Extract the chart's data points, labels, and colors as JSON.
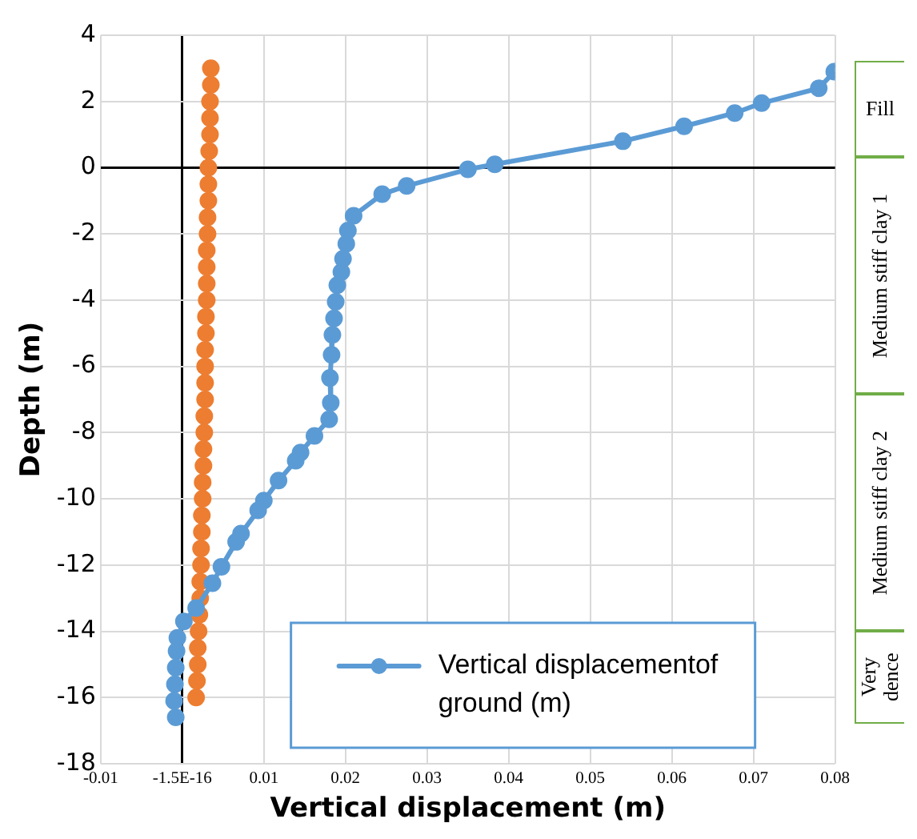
{
  "chart_data": {
    "type": "line",
    "xlabel": "Vertical displacement (m)",
    "ylabel": "Depth (m)",
    "xlim": [
      -0.01,
      0.08
    ],
    "xticks": [
      {
        "value": -0.01,
        "label": "-0.01"
      },
      {
        "value": 0,
        "label": "-1.5E-16"
      },
      0.01,
      0.02,
      0.03,
      0.04,
      0.05,
      0.06,
      0.07,
      0.08
    ],
    "ylim": [
      -18,
      4
    ],
    "yticks": [
      4,
      2,
      0,
      -2,
      -4,
      -6,
      -8,
      -10,
      -12,
      -14,
      -16,
      -18
    ],
    "grid": true,
    "legend": "bottom right",
    "marker": "circle",
    "line_style": "solid",
    "annotations": [
      "Fill",
      "Medium stiff clay 1",
      "Medium stiff clay 2",
      "Very dence"
    ],
    "series": [
      {
        "name": "Vertical displacementof ground (m)",
        "color": "#5b9bd5",
        "x": [
          0.0799,
          0.078,
          0.071,
          0.0677,
          0.0615,
          0.054,
          0.0383,
          0.035,
          0.0275,
          0.0245,
          0.021,
          0.0203,
          0.0201,
          0.0197,
          0.0195,
          0.019,
          0.0188,
          0.0186,
          0.0184,
          0.0183,
          0.0181,
          0.0182,
          0.018,
          0.0162,
          0.0145,
          0.0139,
          0.0118,
          0.01,
          0.0093,
          0.0072,
          0.0066,
          0.0048,
          0.0037,
          0.0017,
          0.0002,
          -0.0006,
          -0.0007,
          -0.0008,
          -0.0009,
          -0.001,
          -0.0008
        ],
        "values": [
          2.9,
          2.4,
          1.95,
          1.65,
          1.25,
          0.8,
          0.1,
          -0.05,
          -0.55,
          -0.8,
          -1.45,
          -1.9,
          -2.3,
          -2.75,
          -3.15,
          -3.55,
          -4.05,
          -4.55,
          -5.05,
          -5.65,
          -6.35,
          -7.1,
          -7.6,
          -8.1,
          -8.6,
          -8.85,
          -9.45,
          -10.05,
          -10.35,
          -11.05,
          -11.3,
          -12.05,
          -12.55,
          -13.3,
          -13.7,
          -14.2,
          -14.6,
          -15.1,
          -15.6,
          -16.1,
          -16.6
        ]
      },
      {
        "type": "scatter",
        "color": "#ed7d31",
        "x": [
          0.0035,
          0.0035,
          0.0034,
          0.0034,
          0.0034,
          0.0033,
          0.0032,
          0.0032,
          0.0032,
          0.0031,
          0.0031,
          0.003,
          0.003,
          0.003,
          0.003,
          0.0029,
          0.0029,
          0.0028,
          0.0028,
          0.0028,
          0.0028,
          0.0027,
          0.0027,
          0.0026,
          0.0026,
          0.0025,
          0.0025,
          0.0024,
          0.0024,
          0.0023,
          0.0023,
          0.0022,
          0.0022,
          0.0021,
          0.002,
          0.0019,
          0.0019,
          0.0018,
          0.0017
        ],
        "values": [
          3,
          2.5,
          2,
          1.5,
          1,
          0.5,
          0,
          -0.5,
          -1,
          -1.5,
          -2,
          -2.5,
          -3,
          -3.5,
          -4,
          -4.5,
          -5,
          -5.5,
          -6,
          -6.5,
          -7,
          -7.5,
          -8,
          -8.5,
          -9,
          -9.5,
          -10,
          -10.5,
          -11,
          -11.5,
          -12,
          -12.5,
          -13,
          -13.5,
          -14,
          -14.5,
          -15,
          -15.5,
          -16
        ]
      }
    ]
  }
}
